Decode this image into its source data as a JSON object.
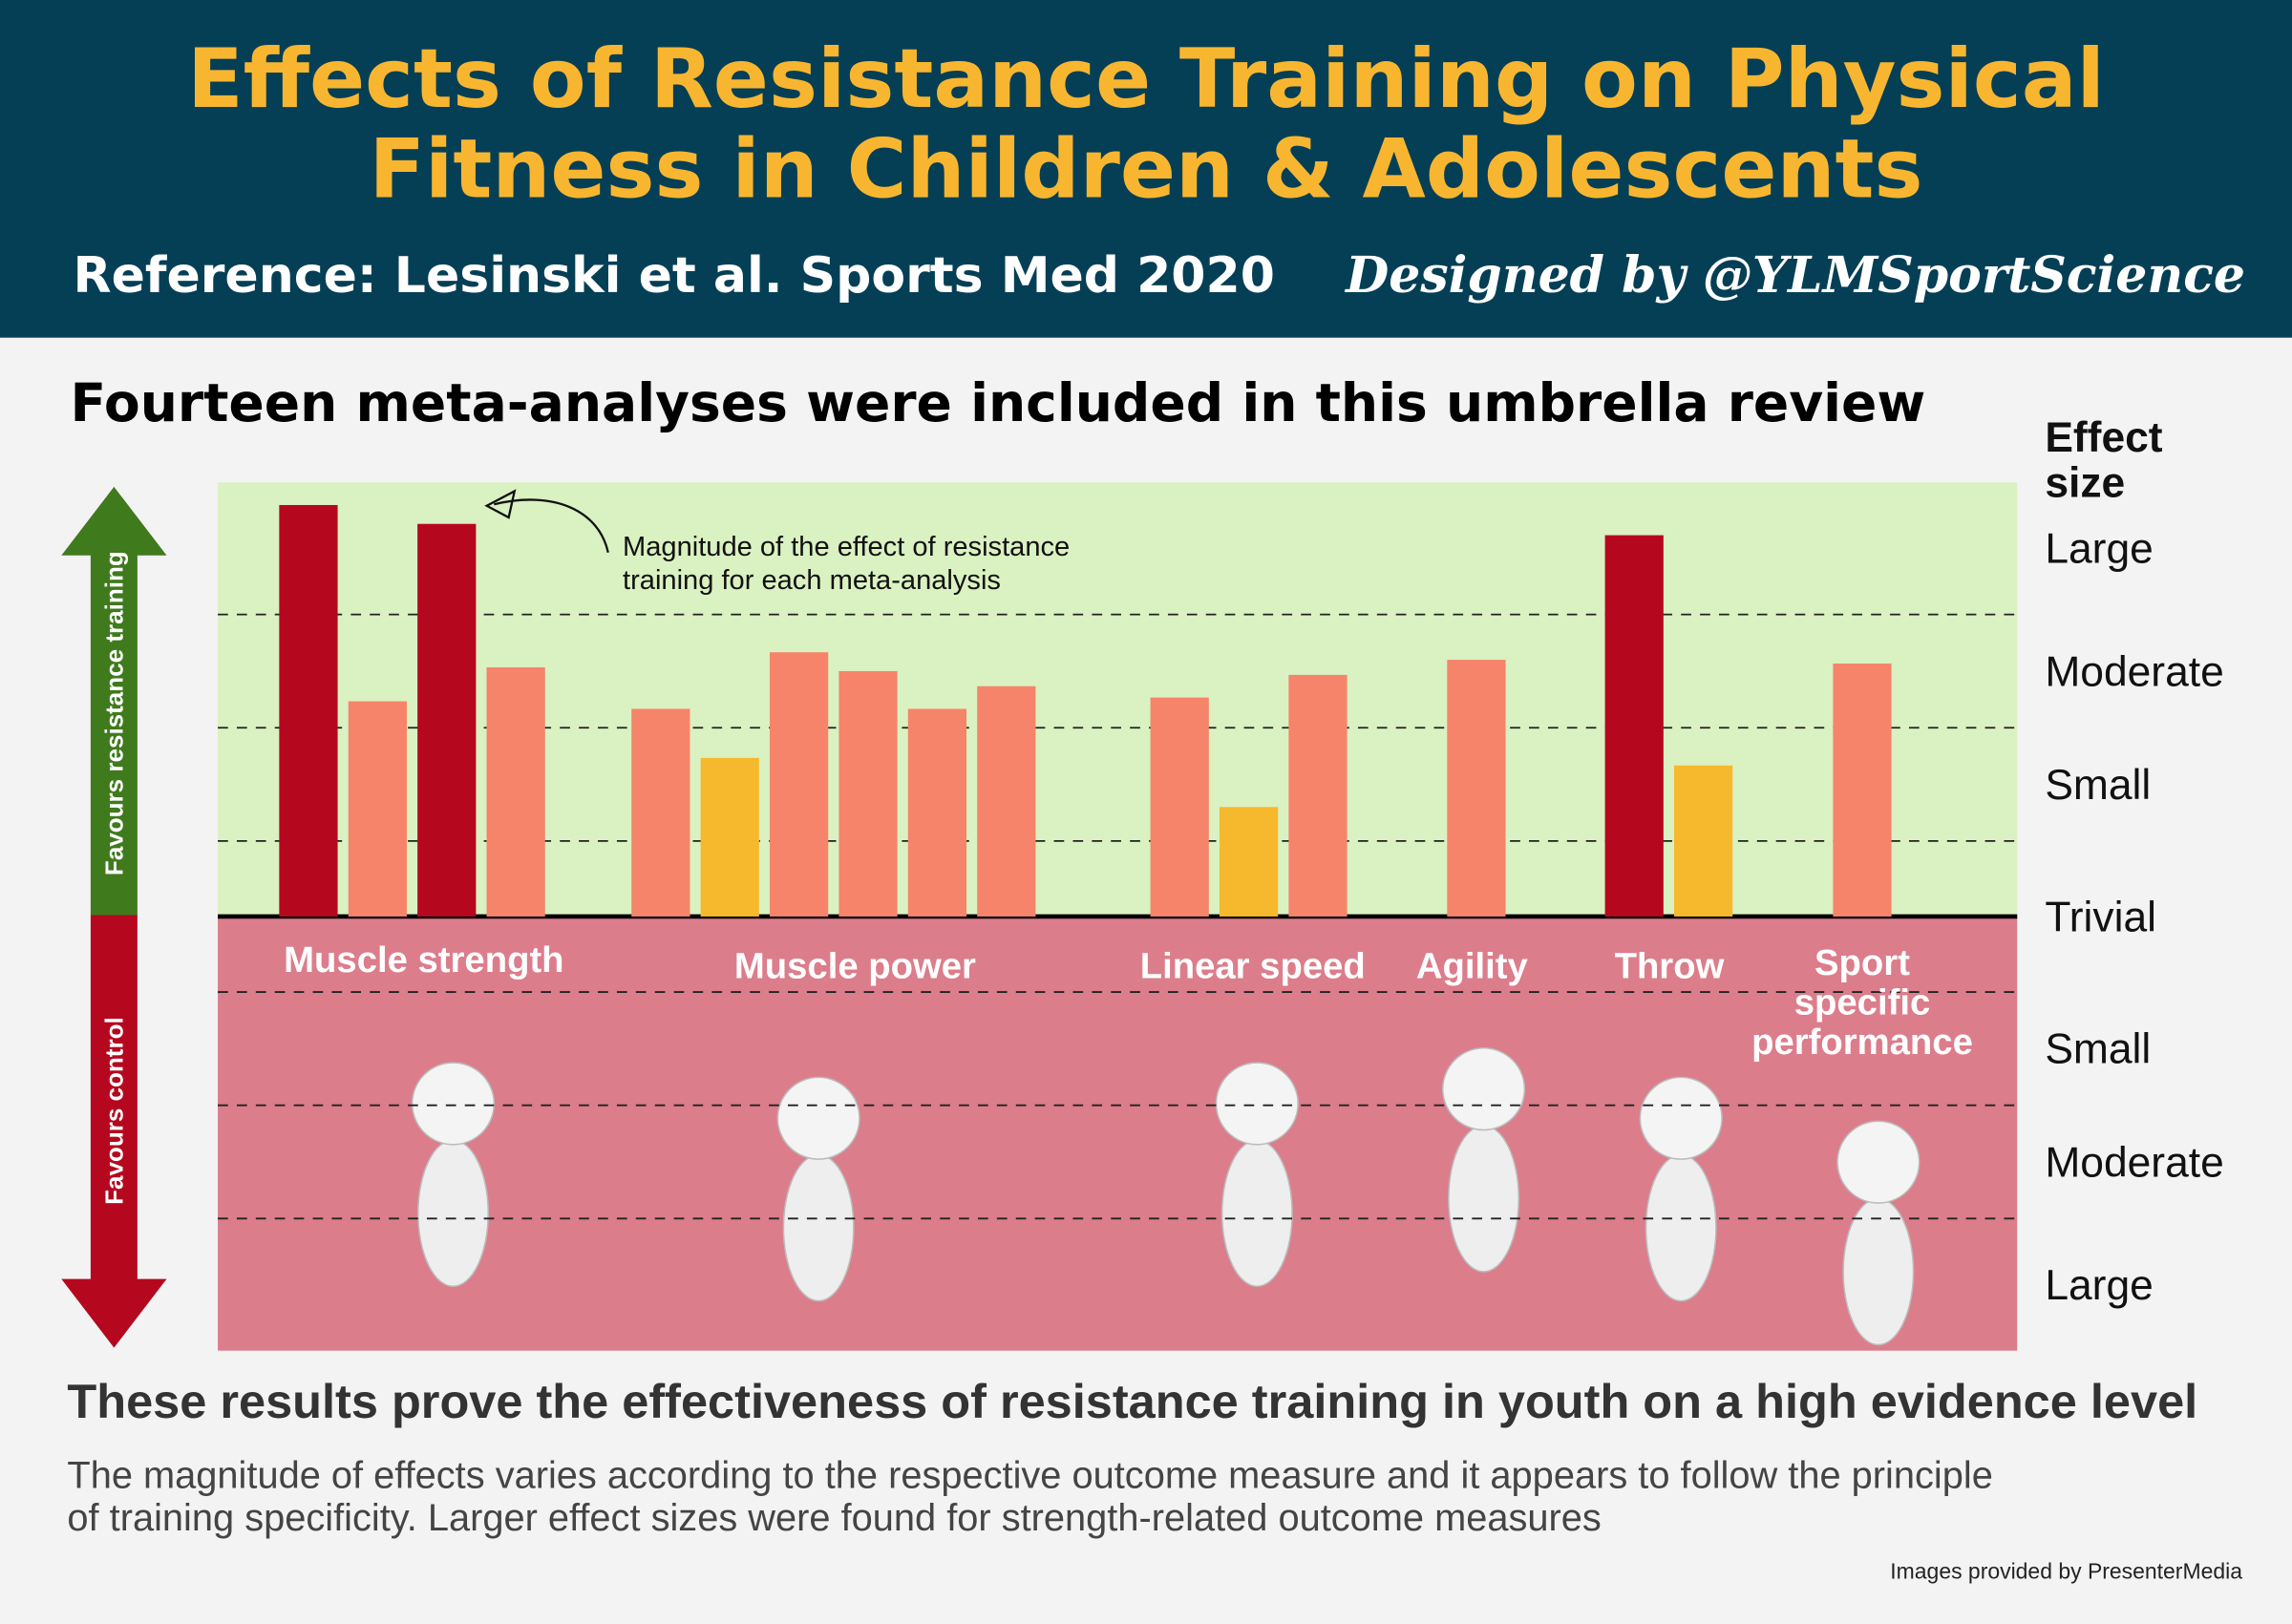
{
  "header": {
    "title_lines": [
      "Effects of Resistance Training on Physical",
      "Fitness in Children & Adolescents"
    ],
    "reference": "Reference: Lesinski et al. Sports Med 2020",
    "designer": "Designed by @YLMSportScience"
  },
  "chart_data": {
    "type": "bar",
    "title": "Fourteen meta-analyses were included in this umbrella review",
    "y_axis_title": [
      "Effect",
      "size"
    ],
    "y_band_labels": [
      "Large",
      "Moderate",
      "Small",
      "Trivial",
      "Small",
      "Moderate",
      "Large"
    ],
    "side_labels": {
      "positive": "Favours resistance training",
      "negative": "Favours control"
    },
    "annotation": [
      "Magnitude of the effect of resistance",
      "training for each meta-analysis"
    ],
    "groups": [
      {
        "name_lines": [
          "Muscle strength"
        ],
        "values": [
          1.09,
          0.57,
          1.04,
          0.66
        ],
        "colors": [
          "#b5081f",
          "#f6846a",
          "#b5081f",
          "#f6846a"
        ]
      },
      {
        "name_lines": [
          "Muscle power"
        ],
        "values": [
          0.55,
          0.42,
          0.7,
          0.65,
          0.55,
          0.61
        ],
        "colors": [
          "#f6846a",
          "#f6b82c",
          "#f6846a",
          "#f6846a",
          "#f6846a",
          "#f6846a"
        ]
      },
      {
        "name_lines": [
          "Linear speed"
        ],
        "values": [
          0.58,
          0.29,
          0.64
        ],
        "colors": [
          "#f6846a",
          "#f6b82c",
          "#f6846a"
        ]
      },
      {
        "name_lines": [
          "Agility"
        ],
        "values": [
          0.68
        ],
        "colors": [
          "#f6846a"
        ]
      },
      {
        "name_lines": [
          "Throw"
        ],
        "values": [
          1.01,
          0.4
        ],
        "colors": [
          "#b5081f",
          "#f6b82c"
        ]
      },
      {
        "name_lines": [
          "Sport",
          "specific",
          "performance"
        ],
        "values": [
          0.67
        ],
        "colors": [
          "#f6846a"
        ]
      }
    ],
    "ylim": [
      -1.15,
      1.15
    ],
    "yticks": [
      -0.8,
      -0.5,
      -0.2,
      0.2,
      0.5,
      0.8
    ],
    "grid": true,
    "panel_colors": {
      "positive": "#daf1c1",
      "negative": "#dc7d8b"
    }
  },
  "footer": {
    "headline": "These results prove the effectiveness of resistance training in youth on a high evidence level",
    "body_lines": [
      "The magnitude of effects varies according to the respective outcome measure and it appears to follow the principle",
      "of training specificity. Larger effect sizes were found for strength-related outcome measures"
    ],
    "credit": "Images provided by PresenterMedia"
  }
}
